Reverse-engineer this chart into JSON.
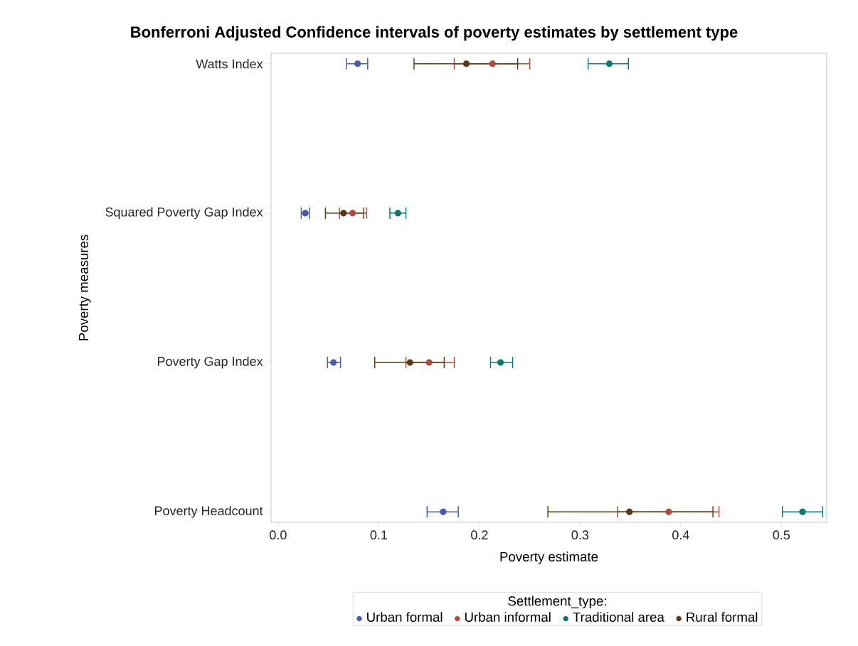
{
  "chart_data": {
    "type": "scatter",
    "orientation": "horizontal",
    "title": "Bonferroni Adjusted Confidence intervals of poverty estimates by settlement type",
    "xlabel": "Poverty estimate",
    "ylabel": "Poverty measures",
    "legend_title": "Settlement_type:",
    "categories": [
      "Watts Index",
      "Squared Poverty Gap Index",
      "Poverty Gap Index",
      "Poverty Headcount"
    ],
    "xlim": [
      -0.007,
      0.545
    ],
    "xticks": [
      {
        "value": 0,
        "label": "0.0"
      },
      0.1,
      0.2,
      0.3,
      0.4,
      0.5
    ],
    "marker": "circle",
    "grid": false,
    "legend": "bottom",
    "series": [
      {
        "name": "Urban formal",
        "color": "#4a5aa8",
        "values": [
          0.079,
          0.027,
          0.055,
          0.164
        ],
        "errors": [
          [
            0.068,
            0.089
          ],
          [
            0.023,
            0.031
          ],
          [
            0.049,
            0.062
          ],
          [
            0.148,
            0.179
          ]
        ]
      },
      {
        "name": "Urban informal",
        "color": "#b04a3c",
        "values": [
          0.213,
          0.074,
          0.15,
          0.388
        ],
        "errors": [
          [
            0.175,
            0.25
          ],
          [
            0.061,
            0.088
          ],
          [
            0.127,
            0.175
          ],
          [
            0.337,
            0.438
          ]
        ]
      },
      {
        "name": "Traditional area",
        "color": "#0b7a6e",
        "values": [
          0.329,
          0.119,
          0.221,
          0.521
        ],
        "errors": [
          [
            0.308,
            0.348
          ],
          [
            0.111,
            0.127
          ],
          [
            0.211,
            0.233
          ],
          [
            0.501,
            0.541
          ]
        ]
      },
      {
        "name": "Rural formal",
        "color": "#5a3a14",
        "values": [
          0.187,
          0.065,
          0.131,
          0.349
        ],
        "errors": [
          [
            0.135,
            0.238
          ],
          [
            0.047,
            0.085
          ],
          [
            0.096,
            0.165
          ],
          [
            0.268,
            0.432
          ]
        ]
      }
    ]
  }
}
